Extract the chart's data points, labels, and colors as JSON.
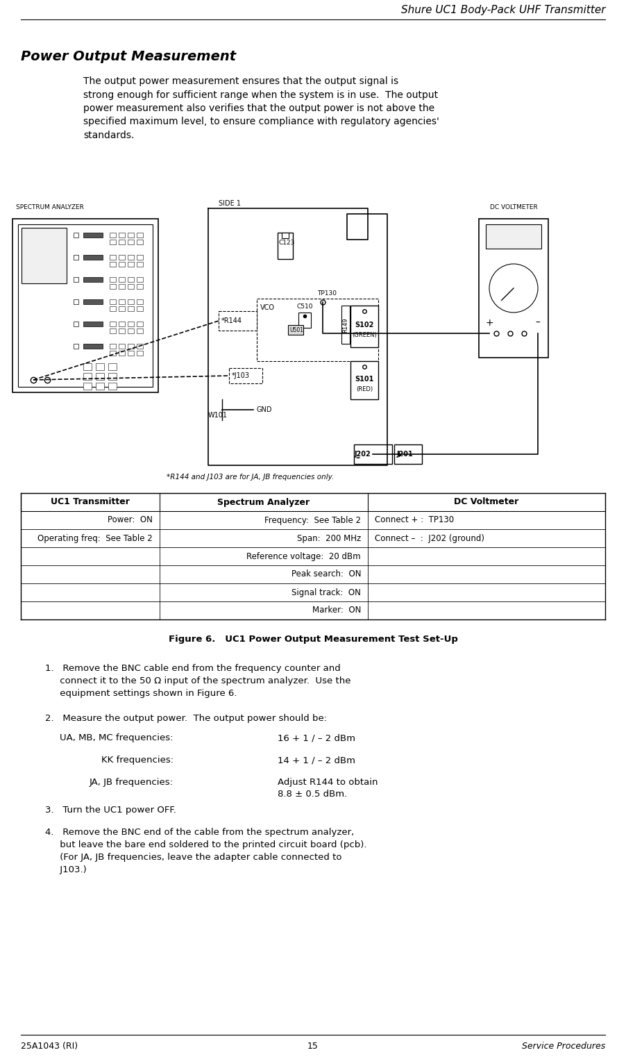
{
  "header_title": "Shure UC1 Body-Pack UHF Transmitter",
  "section_title": "Power Output Measurement",
  "body_text": "The output power measurement ensures that the output signal is\nstrong enough for sufficient range when the system is in use.  The output\npower measurement also verifies that the output power is not above the\nspecified maximum level, to ensure compliance with regulatory agencies'\nstandards.",
  "footer_left": "25A1043 (RI)",
  "footer_center": "15",
  "footer_right": "Service Procedures",
  "figure_caption": "Figure 6.   UC1 Power Output Measurement Test Set-Up",
  "footnote": "*R144 and J103 are for JA, JB frequencies only.",
  "table_headers": [
    "UC1 Transmitter",
    "Spectrum Analyzer",
    "DC Voltmeter"
  ],
  "table_rows": [
    [
      "Power:  ON",
      "Frequency:  See Table 2",
      "Connect + :  TP130"
    ],
    [
      "Operating freq:  See Table 2",
      "Span:  200 MHz",
      "Connect –  :  J202 (ground)"
    ],
    [
      "",
      "Reference voltage:  20 dBm",
      ""
    ],
    [
      "",
      "Peak search:  ON",
      ""
    ],
    [
      "",
      "Signal track:  ON",
      ""
    ],
    [
      "",
      "Marker:  ON",
      ""
    ]
  ],
  "steps": [
    "1.   Remove the BNC cable end from the frequency counter and\n     connect it to the 50 Ω input of the spectrum analyzer.  Use the\n     equipment settings shown in Figure 6.",
    "2.   Measure the output power.  The output power should be:",
    "3.   Turn the UC1 power OFF.",
    "4.   Remove the BNC end of the cable from the spectrum analyzer,\n     but leave the bare end soldered to the printed circuit board (pcb).\n     (For JA, JB frequencies, leave the adapter cable connected to\n     J103.)"
  ],
  "freq_lines": [
    [
      "UA, MB, MC frequencies:",
      "16 + 1 / – 2 dBm"
    ],
    [
      "KK frequencies:",
      "14 + 1 / – 2 dBm"
    ],
    [
      "JA, JB frequencies:",
      "Adjust R144 to obtain\n8.8 ± 0.5 dBm."
    ]
  ],
  "bg_color": "#ffffff",
  "text_color": "#000000",
  "line_color": "#000000"
}
